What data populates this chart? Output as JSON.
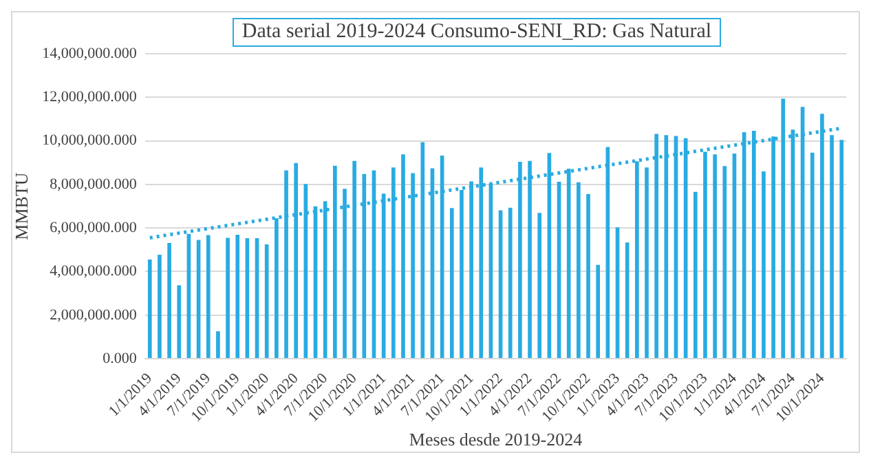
{
  "chart_data": {
    "type": "bar",
    "title": "Data serial 2019-2024 Consumo-SENI_RD: Gas Natural",
    "xlabel": "Meses desde 2019-2024",
    "ylabel": "MMBTU",
    "categories": [
      "1/1/2019",
      null,
      null,
      "4/1/2019",
      null,
      null,
      "7/1/2019",
      null,
      null,
      "10/1/2019",
      null,
      null,
      "1/1/2020",
      null,
      null,
      "4/1/2020",
      null,
      null,
      "7/1/2020",
      null,
      null,
      "10/1/2020",
      null,
      null,
      "1/1/2021",
      null,
      null,
      "4/1/2021",
      null,
      null,
      "7/1/2021",
      null,
      null,
      "10/1/2021",
      null,
      null,
      "1/1/2022",
      null,
      null,
      "4/1/2022",
      null,
      null,
      "7/1/2022",
      null,
      null,
      "10/1/2022",
      null,
      null,
      "1/1/2023",
      null,
      null,
      "4/1/2023",
      null,
      null,
      "7/1/2023",
      null,
      null,
      "10/1/2023",
      null,
      null,
      "1/1/2024",
      null,
      null,
      "4/1/2024",
      null,
      null,
      "7/1/2024",
      null,
      null,
      "10/1/2024",
      null,
      null
    ],
    "series": [
      {
        "color": "#29abe2",
        "values": [
          4550000,
          4770000,
          5310000,
          3370000,
          5730000,
          5450000,
          5670000,
          1260000,
          5550000,
          5690000,
          5530000,
          5530000,
          5250000,
          6450000,
          8640000,
          8980000,
          8020000,
          6990000,
          7230000,
          8860000,
          7800000,
          9080000,
          8480000,
          8640000,
          7580000,
          8780000,
          9380000,
          8520000,
          9940000,
          8740000,
          9320000,
          6910000,
          7740000,
          8140000,
          8780000,
          8040000,
          6810000,
          6930000,
          9040000,
          9080000,
          6690000,
          9440000,
          8120000,
          8720000,
          8100000,
          7560000,
          4310000,
          9720000,
          6030000,
          5330000,
          9060000,
          8780000,
          10320000,
          10260000,
          10220000,
          10120000,
          7660000,
          9500000,
          9380000,
          8840000,
          9420000,
          10400000,
          10460000,
          8600000,
          10200000,
          11940000,
          10520000,
          11560000,
          9460000,
          11240000,
          10260000,
          10040000
        ]
      },
      {
        "type": "line",
        "color": "#29abe2",
        "line_style": "dotted",
        "marker": "none",
        "values": [
          5550000,
          null,
          null,
          null,
          null,
          null,
          null,
          null,
          null,
          null,
          null,
          null,
          null,
          null,
          null,
          null,
          null,
          null,
          null,
          null,
          null,
          null,
          null,
          null,
          null,
          null,
          null,
          null,
          null,
          null,
          null,
          null,
          null,
          null,
          null,
          null,
          null,
          null,
          null,
          null,
          null,
          null,
          null,
          null,
          null,
          null,
          null,
          null,
          null,
          null,
          null,
          null,
          null,
          null,
          null,
          null,
          null,
          null,
          null,
          null,
          null,
          null,
          null,
          null,
          null,
          null,
          null,
          null,
          null,
          null,
          null,
          10580000
        ]
      }
    ],
    "ylim": [
      0,
      14000000
    ],
    "yticks": [
      {
        "value": 0,
        "label": "0.000"
      },
      {
        "value": 2000000,
        "label": "2,000,000.000"
      },
      {
        "value": 4000000,
        "label": "4,000,000.000"
      },
      {
        "value": 6000000,
        "label": "6,000,000.000"
      },
      {
        "value": 8000000,
        "label": "8,000,000.000"
      },
      {
        "value": 10000000,
        "label": "10,000,000.000"
      },
      {
        "value": 12000000,
        "label": "12,000,000.000"
      },
      {
        "value": 14000000,
        "label": "14,000,000.000"
      }
    ],
    "grid": "y",
    "legend": false
  }
}
